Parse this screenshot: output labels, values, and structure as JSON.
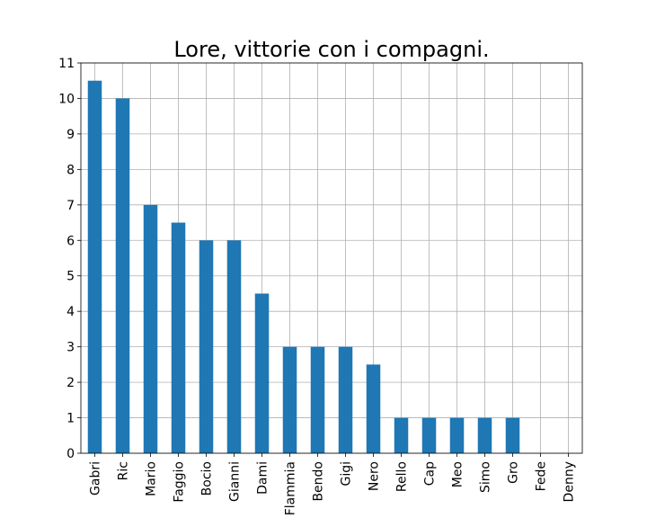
{
  "chart_data": {
    "type": "bar",
    "title": "Lore, vittorie con i compagni.",
    "xlabel": "",
    "ylabel": "",
    "categories": [
      "Gabri",
      "Ric",
      "Mario",
      "Faggio",
      "Bocio",
      "Gianni",
      "Dami",
      "Flammia",
      "Bendo",
      "Gigi",
      "Nero",
      "Rello",
      "Cap",
      "Meo",
      "Simo",
      "Gro",
      "Fede",
      "Denny"
    ],
    "values": [
      10.5,
      10,
      7,
      6.5,
      6,
      6,
      4.5,
      3,
      3,
      3,
      2.5,
      1,
      1,
      1,
      1,
      1,
      0,
      0
    ],
    "ylim": [
      0,
      11
    ],
    "yticks": [
      0,
      1,
      2,
      3,
      4,
      5,
      6,
      7,
      8,
      9,
      10,
      11
    ],
    "grid": true,
    "bar_color": "#1f77b4"
  }
}
